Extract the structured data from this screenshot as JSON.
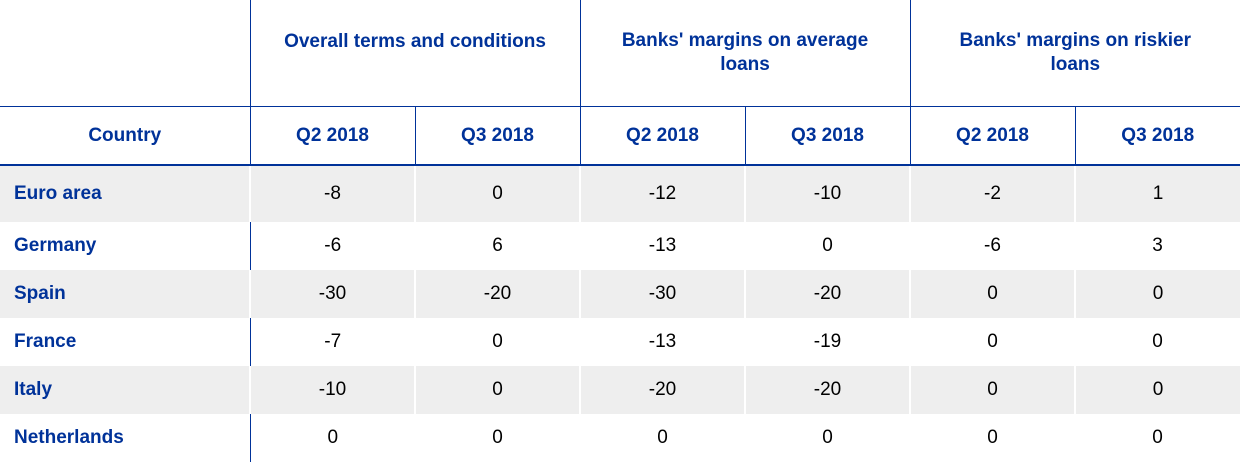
{
  "table": {
    "country_header": "Country",
    "groups": [
      {
        "label": "Overall terms and conditions"
      },
      {
        "label": "Banks' margins on average loans"
      },
      {
        "label": "Banks' margins on riskier loans"
      }
    ],
    "quarters": [
      "Q2 2018",
      "Q3 2018"
    ],
    "rows": [
      {
        "country": "Euro area",
        "values": [
          "-8",
          "0",
          "-12",
          "-10",
          "-2",
          "1"
        ]
      },
      {
        "country": "Germany",
        "values": [
          "-6",
          "6",
          "-13",
          "0",
          "-6",
          "3"
        ]
      },
      {
        "country": "Spain",
        "values": [
          "-30",
          "-20",
          "-30",
          "-20",
          "0",
          "0"
        ]
      },
      {
        "country": "France",
        "values": [
          "-7",
          "0",
          "-13",
          "-19",
          "0",
          "0"
        ]
      },
      {
        "country": "Italy",
        "values": [
          "-10",
          "0",
          "-20",
          "-20",
          "0",
          "0"
        ]
      },
      {
        "country": "Netherlands",
        "values": [
          "0",
          "0",
          "0",
          "0",
          "0",
          "0"
        ]
      }
    ]
  },
  "colors": {
    "header_text": "#003299",
    "row_shade": "#eeeeee",
    "rule": "#003299"
  }
}
